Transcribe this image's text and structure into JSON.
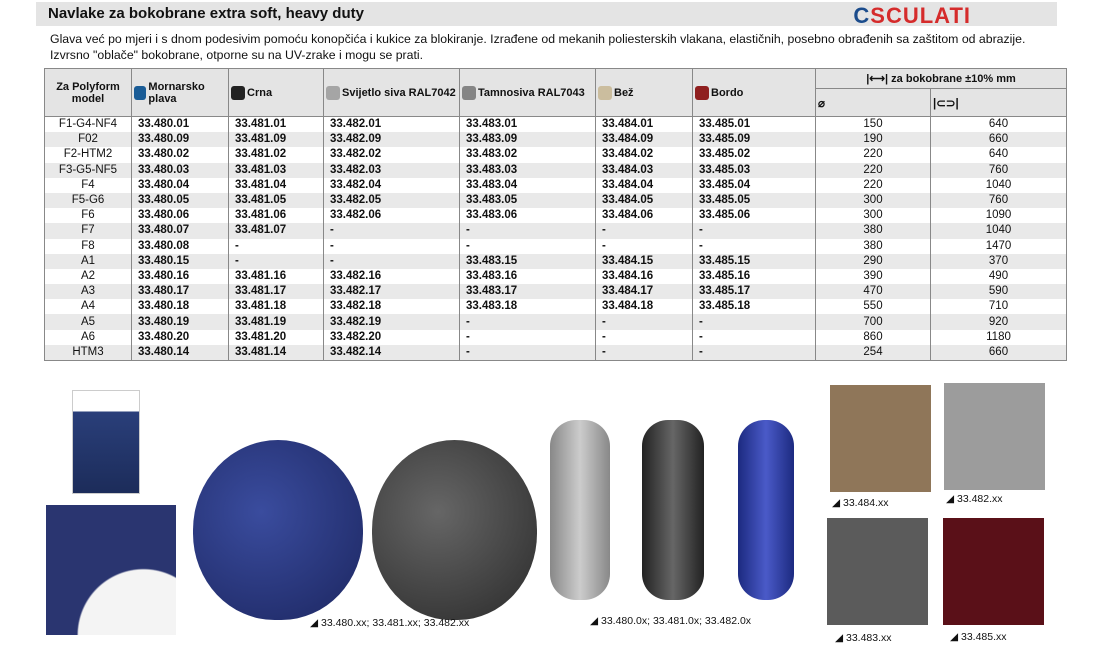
{
  "header": {
    "title": "Navlake za bokobrane extra soft, heavy duty",
    "logo": "OSCULATI"
  },
  "description": "Glava već po mjeri i s dnom podesivim pomoću konopčića i kukice za blokiranje.    Izrađene od mekanih poliesterskih vlakana, elastičnih, posebno obrađenih sa zaštitom od abrazije. Izvrsno \"oblače\" bokobrane, otporne su na UV-zrake i mogu se prati.",
  "table": {
    "model_header": "Za Polyform model",
    "colors": [
      {
        "label": "Mornarsko plava",
        "color": "#1a5c96"
      },
      {
        "label": "Crna",
        "color": "#222222"
      },
      {
        "label": "Svijetlo siva RAL7042",
        "color": "#a5a5a5"
      },
      {
        "label": "Tamnosiva RAL7043",
        "color": "#858585"
      },
      {
        "label": "Bež",
        "color": "#cbbd9e"
      },
      {
        "label": "Bordo",
        "color": "#8f1f1f"
      }
    ],
    "dims_header": "za bokobrane ±10% mm",
    "dims_icons": [
      "diameter-icon",
      "length-icon"
    ],
    "rows": [
      [
        "F1-G4-NF4",
        "33.480.01",
        "33.481.01",
        "33.482.01",
        "33.483.01",
        "33.484.01",
        "33.485.01",
        "150",
        "640"
      ],
      [
        "F02",
        "33.480.09",
        "33.481.09",
        "33.482.09",
        "33.483.09",
        "33.484.09",
        "33.485.09",
        "190",
        "660"
      ],
      [
        "F2-HTM2",
        "33.480.02",
        "33.481.02",
        "33.482.02",
        "33.483.02",
        "33.484.02",
        "33.485.02",
        "220",
        "640"
      ],
      [
        "F3-G5-NF5",
        "33.480.03",
        "33.481.03",
        "33.482.03",
        "33.483.03",
        "33.484.03",
        "33.485.03",
        "220",
        "760"
      ],
      [
        "F4",
        "33.480.04",
        "33.481.04",
        "33.482.04",
        "33.483.04",
        "33.484.04",
        "33.485.04",
        "220",
        "1040"
      ],
      [
        "F5-G6",
        "33.480.05",
        "33.481.05",
        "33.482.05",
        "33.483.05",
        "33.484.05",
        "33.485.05",
        "300",
        "760"
      ],
      [
        "F6",
        "33.480.06",
        "33.481.06",
        "33.482.06",
        "33.483.06",
        "33.484.06",
        "33.485.06",
        "300",
        "1090"
      ],
      [
        "F7",
        "33.480.07",
        "33.481.07",
        "-",
        "-",
        "-",
        "-",
        "380",
        "1040"
      ],
      [
        "F8",
        "33.480.08",
        "-",
        "-",
        "-",
        "-",
        "-",
        "380",
        "1470"
      ],
      [
        "A1",
        "33.480.15",
        "-",
        "-",
        "33.483.15",
        "33.484.15",
        "33.485.15",
        "290",
        "370"
      ],
      [
        "A2",
        "33.480.16",
        "33.481.16",
        "33.482.16",
        "33.483.16",
        "33.484.16",
        "33.485.16",
        "390",
        "490"
      ],
      [
        "A3",
        "33.480.17",
        "33.481.17",
        "33.482.17",
        "33.483.17",
        "33.484.17",
        "33.485.17",
        "470",
        "590"
      ],
      [
        "A4",
        "33.480.18",
        "33.481.18",
        "33.482.18",
        "33.483.18",
        "33.484.18",
        "33.485.18",
        "550",
        "710"
      ],
      [
        "A5",
        "33.480.19",
        "33.481.19",
        "33.482.19",
        "-",
        "-",
        "-",
        "700",
        "920"
      ],
      [
        "A6",
        "33.480.20",
        "33.481.20",
        "33.482.20",
        "-",
        "-",
        "-",
        "860",
        "1180"
      ],
      [
        "HTM3",
        "33.480.14",
        "33.481.14",
        "33.482.14",
        "-",
        "-",
        "-",
        "254",
        "660"
      ]
    ]
  },
  "captions": {
    "ball": "33.480.xx; 33.481.xx; 33.482.xx",
    "cyl": "33.480.0x; 33.481.0x; 33.482.0x",
    "t1": "33.484.xx",
    "t2": "33.482.xx",
    "t3": "33.483.xx",
    "t4": "33.485.xx"
  }
}
